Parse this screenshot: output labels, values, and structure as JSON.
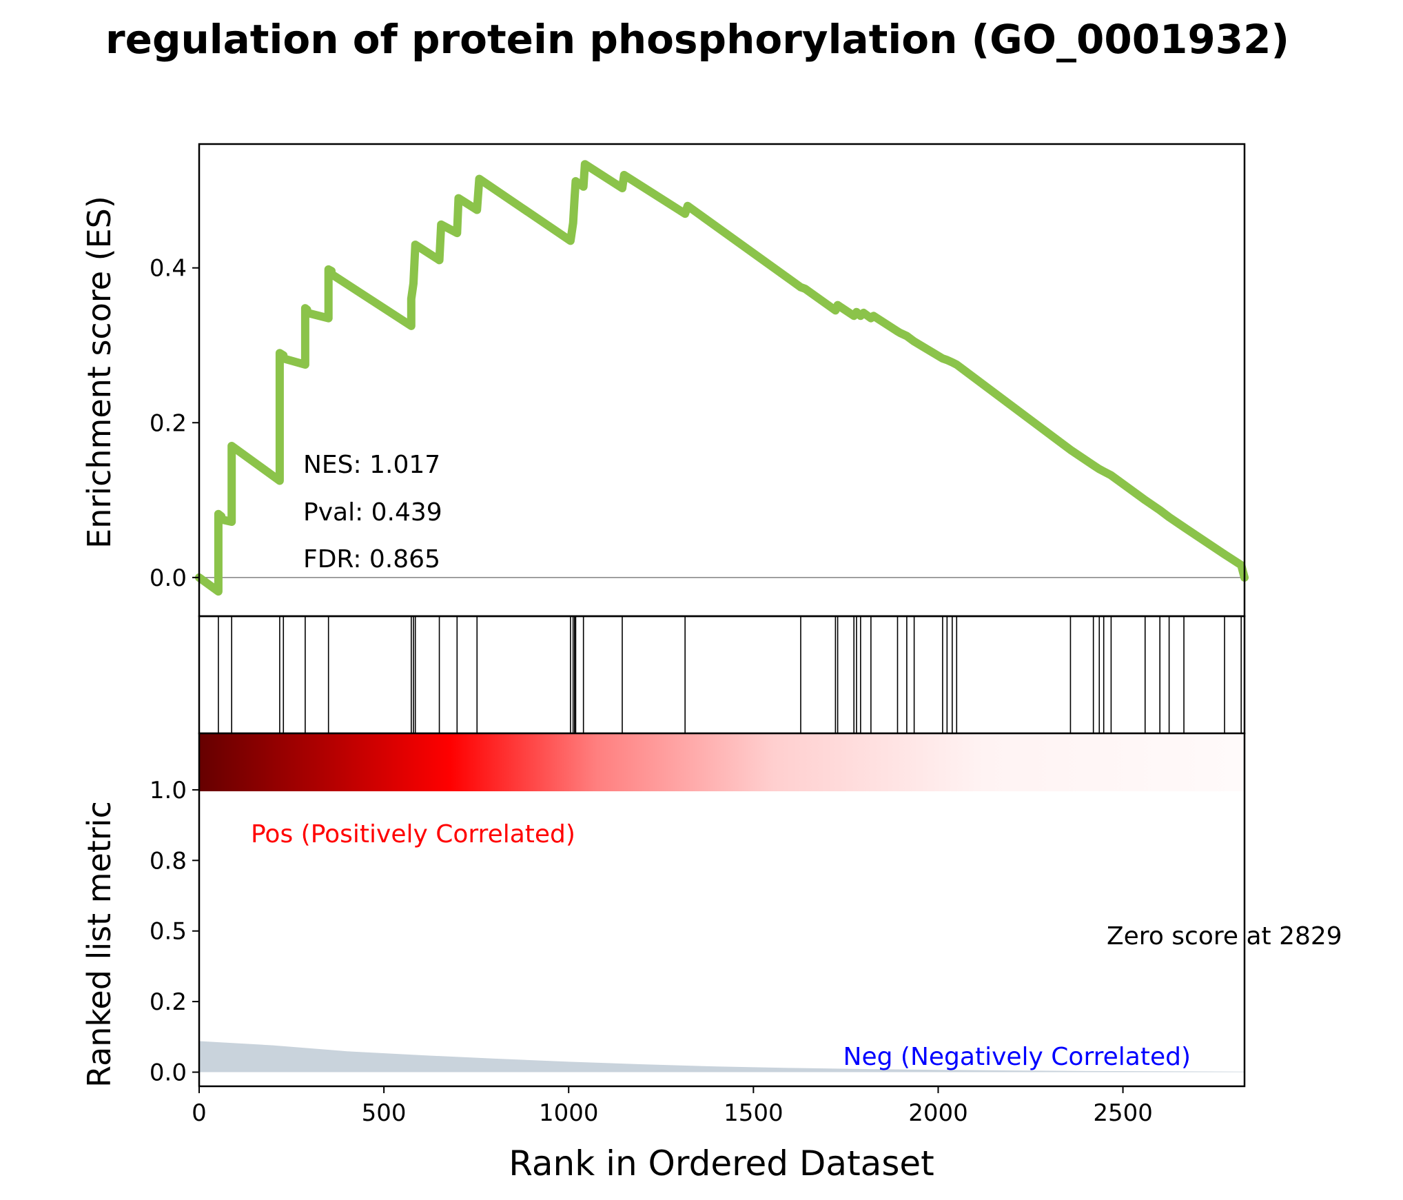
{
  "chart_data": {
    "type": "line",
    "title": "regulation of protein phosphorylation (GO_0001932)",
    "es_panel": {
      "ylabel": "Enrichment score (ES)",
      "ylim": [
        -0.05,
        0.56
      ],
      "yticks": [
        0.0,
        0.2,
        0.4
      ],
      "ytick_labels": [
        "0.0",
        "0.2",
        "0.4"
      ],
      "line_color": "#8bc34a",
      "stats": {
        "nes": "NES: 1.017",
        "pval": "Pval: 0.439",
        "fdr": "FDR: 0.865"
      },
      "series": [
        {
          "x": [
            0,
            52,
            52,
            60,
            60,
            88,
            88,
            218,
            218,
            228,
            228,
            287,
            287,
            292,
            292,
            350,
            350,
            358,
            358,
            574,
            574,
            580,
            580,
            585,
            585,
            650,
            650,
            655,
            655,
            698,
            698,
            702,
            702,
            752,
            752,
            758,
            758,
            1005,
            1005,
            1012,
            1012,
            1016,
            1016,
            1019,
            1019,
            1040,
            1040,
            1044,
            1044,
            1145,
            1145,
            1150,
            1150,
            1315,
            1315,
            1322,
            1322,
            1628,
            1628,
            1640,
            1640,
            1722,
            1722,
            1728,
            1728,
            1772,
            1772,
            1779,
            1779,
            1790,
            1790,
            1798,
            1798,
            1818,
            1818,
            1825,
            1825,
            1890,
            1890,
            1897,
            1897,
            1915,
            1915,
            1935,
            1935,
            2012,
            2012,
            2024,
            2024,
            2038,
            2038,
            2050,
            2050,
            2358,
            2358,
            2420,
            2420,
            2436,
            2436,
            2448,
            2448,
            2468,
            2468,
            2560,
            2560,
            2600,
            2600,
            2625,
            2625,
            2665,
            2665,
            2775,
            2775,
            2820,
            2820,
            2829
          ],
          "y": [
            0.0,
            -0.018,
            0.082,
            0.079,
            0.075,
            0.072,
            0.17,
            0.125,
            0.29,
            0.287,
            0.283,
            0.275,
            0.348,
            0.346,
            0.342,
            0.335,
            0.398,
            0.396,
            0.392,
            0.325,
            0.36,
            0.38,
            0.38,
            0.43,
            0.43,
            0.41,
            0.41,
            0.456,
            0.456,
            0.445,
            0.445,
            0.49,
            0.49,
            0.475,
            0.475,
            0.515,
            0.515,
            0.435,
            0.435,
            0.458,
            0.458,
            0.49,
            0.49,
            0.512,
            0.512,
            0.505,
            0.505,
            0.534,
            0.534,
            0.503,
            0.503,
            0.52,
            0.52,
            0.47,
            0.47,
            0.48,
            0.48,
            0.375,
            0.375,
            0.373,
            0.373,
            0.345,
            0.345,
            0.352,
            0.352,
            0.338,
            0.338,
            0.343,
            0.343,
            0.338,
            0.338,
            0.342,
            0.342,
            0.335,
            0.335,
            0.338,
            0.338,
            0.318,
            0.318,
            0.316,
            0.316,
            0.312,
            0.312,
            0.305,
            0.305,
            0.283,
            0.283,
            0.281,
            0.281,
            0.278,
            0.278,
            0.275,
            0.275,
            0.165,
            0.165,
            0.145,
            0.145,
            0.14,
            0.14,
            0.137,
            0.137,
            0.132,
            0.132,
            0.1,
            0.1,
            0.087,
            0.087,
            0.078,
            0.078,
            0.065,
            0.065,
            0.03,
            0.03,
            0.016,
            0.016,
            0.0
          ]
        }
      ]
    },
    "hits": [
      52,
      88,
      218,
      228,
      287,
      350,
      574,
      580,
      585,
      650,
      698,
      752,
      1005,
      1012,
      1016,
      1019,
      1040,
      1145,
      1315,
      1628,
      1722,
      1728,
      1772,
      1779,
      1790,
      1818,
      1890,
      1915,
      1935,
      2012,
      2024,
      2038,
      2050,
      2358,
      2420,
      2436,
      2448,
      2468,
      2560,
      2600,
      2625,
      2665,
      2775,
      2820
    ],
    "metric_panel": {
      "ylabel": "Ranked list metric",
      "xlabel": "Rank in Ordered Dataset",
      "xlim": [
        0,
        2829
      ],
      "xticks": [
        0,
        500,
        1000,
        1500,
        2000,
        2500
      ],
      "xtick_labels": [
        "0",
        "500",
        "1000",
        "1500",
        "2000",
        "2500"
      ],
      "ylim": [
        -0.05,
        1.2
      ],
      "yticks": [
        0.0,
        0.25,
        0.5,
        0.75,
        1.0
      ],
      "ytick_labels": [
        "0.0",
        "0.2",
        "0.5",
        "0.8",
        "1.0"
      ],
      "pos_label": "Pos (Positively Correlated)",
      "neg_label": "Neg (Negatively Correlated)",
      "zero_label": "Zero score at 2829",
      "fill_color": "#c9d3dc",
      "metric": {
        "x": [
          0,
          200,
          400,
          600,
          800,
          1000,
          1200,
          1400,
          1600,
          1800,
          2000,
          2200,
          2400,
          2600,
          2829
        ],
        "y": [
          0.11,
          0.095,
          0.074,
          0.06,
          0.048,
          0.037,
          0.028,
          0.02,
          0.015,
          0.011,
          0.008,
          0.006,
          0.004,
          0.003,
          0.002
        ]
      }
    },
    "colors": {
      "pos_text": "#ff0000",
      "neg_text": "#0000ff",
      "gradient": [
        "#660000",
        "#d40000",
        "#ff0000",
        "#ff7f7f",
        "#ffd0d0",
        "#fff5f5"
      ]
    }
  }
}
